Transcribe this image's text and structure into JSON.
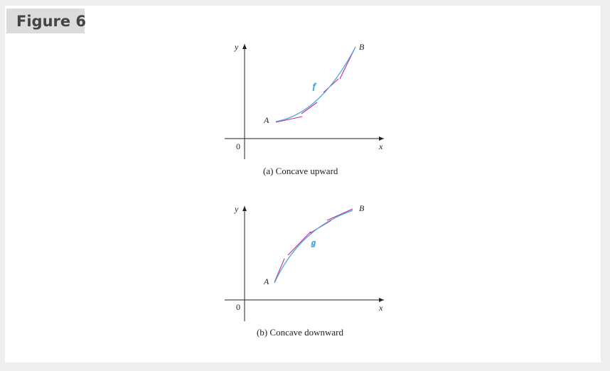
{
  "figure": {
    "label": "Figure 6"
  },
  "panel_a": {
    "caption": "(a) Concave upward",
    "axis_y": "y",
    "axis_x": "x",
    "origin": "0",
    "point_start": "A",
    "point_end": "B",
    "curve_label": "f",
    "colors": {
      "curve": "#c8289b",
      "tangent": "#4aa8d8"
    }
  },
  "panel_b": {
    "caption": "(b) Concave downward",
    "axis_y": "y",
    "axis_x": "x",
    "origin": "0",
    "point_start": "A",
    "point_end": "B",
    "curve_label": "g",
    "colors": {
      "curve": "#c8289b",
      "tangent": "#4aa8d8"
    }
  }
}
